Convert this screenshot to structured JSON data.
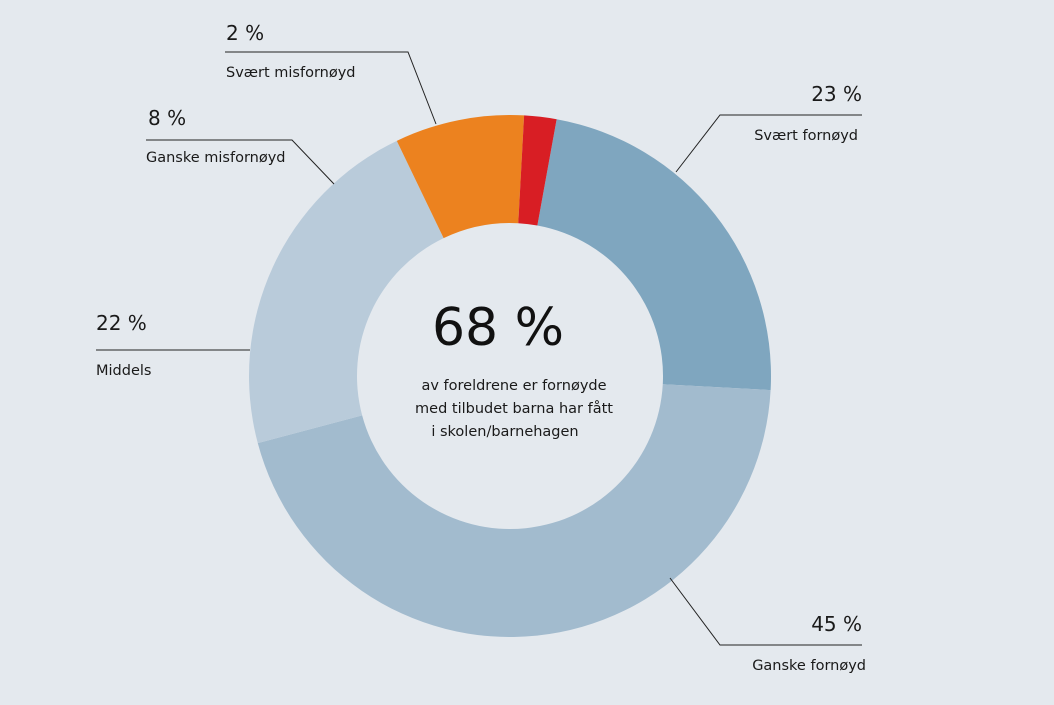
{
  "chart_data": {
    "type": "pie",
    "donut": true,
    "categories": [
      "Svært fornøyd",
      "Ganske fornøyd",
      "Middels",
      "Ganske misfornøyd",
      "Svært misfornøyd"
    ],
    "values": [
      23,
      45,
      22,
      8,
      2
    ],
    "value_labels": [
      "23 %",
      "45 %",
      "22 %",
      "8 %",
      "2 %"
    ],
    "colors": [
      "#7fa6bf",
      "#a2bbce",
      "#b9cbda",
      "#ec821f",
      "#d81e24"
    ],
    "center": {
      "value": "68 %",
      "text_lines": [
        "av foreldrene er fornøyde",
        "med tilbudet barna har fått",
        "i skolen/barnehagen"
      ]
    }
  }
}
